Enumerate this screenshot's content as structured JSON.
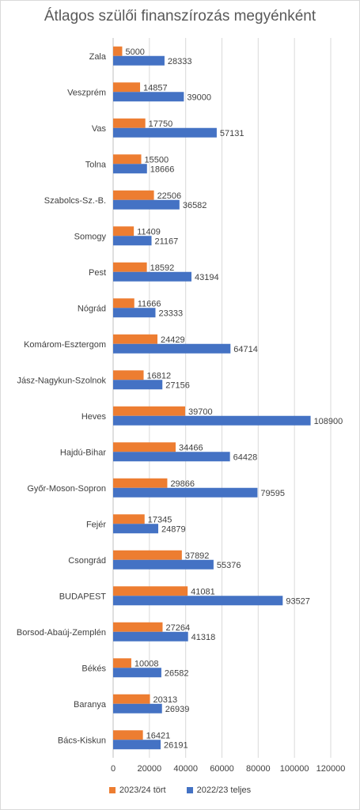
{
  "chart_data": {
    "type": "bar",
    "orientation": "horizontal",
    "title": "Átlagos szülői finanszírozás megyénként",
    "categories": [
      "Zala",
      "Veszprém",
      "Vas",
      "Tolna",
      "Szabolcs-Sz.-B.",
      "Somogy",
      "Pest",
      "Nógrád",
      "Komárom-Esztergom",
      "Jász-Nagykun-Szolnok",
      "Heves",
      "Hajdú-Bihar",
      "Győr-Moson-Sopron",
      "Fejér",
      "Csongrád",
      "BUDAPEST",
      "Borsod-Abaúj-Zemplén",
      "Békés",
      "Baranya",
      "Bács-Kiskun"
    ],
    "series": [
      {
        "name": "2023/24 tört",
        "color": "#ED7D31",
        "values": [
          5000,
          14857,
          17750,
          15500,
          22506,
          11409,
          18592,
          11666,
          24429,
          16812,
          39700,
          34466,
          29866,
          17345,
          37892,
          41081,
          27264,
          10008,
          20313,
          16421
        ]
      },
      {
        "name": "2022/23 teljes",
        "color": "#4472C4",
        "values": [
          28333,
          39000,
          57131,
          18666,
          36582,
          21167,
          43194,
          23333,
          64714,
          27156,
          108900,
          64428,
          79595,
          24879,
          55376,
          93527,
          41318,
          26582,
          26939,
          26191
        ]
      }
    ],
    "xlim": [
      0,
      120000
    ],
    "xticks": [
      "0",
      "20000",
      "40000",
      "60000",
      "80000",
      "100000",
      "120000"
    ],
    "grid": true,
    "legend_position": "bottom"
  }
}
